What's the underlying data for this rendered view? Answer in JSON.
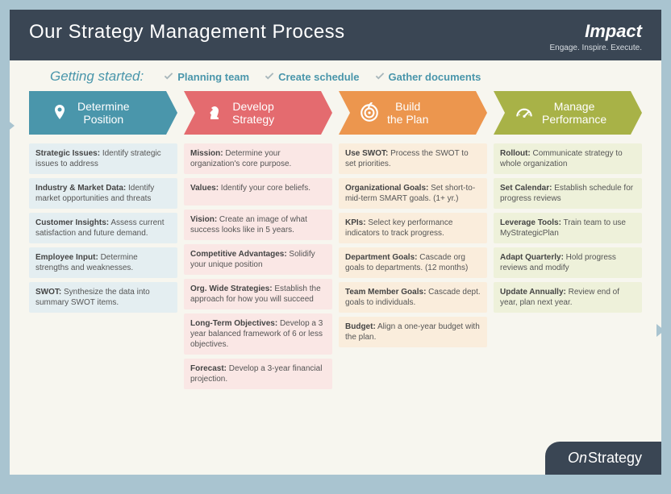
{
  "header": {
    "title": "Our Strategy Management Process",
    "brand": "Impact",
    "tagline": "Engage. Inspire. Execute."
  },
  "getting_started": {
    "label": "Getting started:",
    "items": [
      "Planning team",
      "Create schedule",
      "Gather documents"
    ],
    "label_color": "#4a96ab",
    "check_color": "#a8b7bb"
  },
  "columns": [
    {
      "title": "Determine\nPosition",
      "header_color": "#4a96ab",
      "item_bg": "#e4eef1",
      "icon": "pin",
      "items": [
        {
          "bold": "Strategic Issues:",
          "text": " Identify strategic issues to address"
        },
        {
          "bold": "Industry & Market Data:",
          "text": " Identify market opportunities and threats"
        },
        {
          "bold": "Customer Insights:",
          "text": " Assess current satisfaction and future demand."
        },
        {
          "bold": "Employee Input:",
          "text": " Determine strengths and weaknesses."
        },
        {
          "bold": "SWOT:",
          "text": " Synthesize the data into summary SWOT items."
        }
      ]
    },
    {
      "title": "Develop\nStrategy",
      "header_color": "#e46b6f",
      "item_bg": "#fae7e5",
      "icon": "knight",
      "items": [
        {
          "bold": "Mission:",
          "text": " Determine your organization's core purpose."
        },
        {
          "bold": "Values:",
          "text": " Identify your core beliefs."
        },
        {
          "bold": "Vision:",
          "text": " Create an image of what success looks like in 5 years."
        },
        {
          "bold": "Competitive Advantages:",
          "text": " Solidify your unique position"
        },
        {
          "bold": "Org. Wide Strategies:",
          "text": " Establish the approach for how you will succeed"
        },
        {
          "bold": "Long-Term Objectives:",
          "text": " Develop a 3 year balanced framework of 6 or less objectives."
        },
        {
          "bold": "Forecast:",
          "text": " Develop a 3-year financial projection."
        }
      ]
    },
    {
      "title": "Build\nthe Plan",
      "header_color": "#ec964e",
      "item_bg": "#faeddc",
      "icon": "target",
      "items": [
        {
          "bold": "Use SWOT:",
          "text": " Process the SWOT to set priorities."
        },
        {
          "bold": "Organizational Goals:",
          "text": " Set short-to-mid-term SMART goals. (1+ yr.)"
        },
        {
          "bold": "KPIs:",
          "text": " Select key performance indicators to track progress."
        },
        {
          "bold": "Department Goals:",
          "text": " Cascade org goals to departments. (12 months)"
        },
        {
          "bold": "Team Member Goals:",
          "text": " Cascade dept. goals to individuals."
        },
        {
          "bold": "Budget:",
          "text": " Align a one-year budget with the plan."
        }
      ]
    },
    {
      "title": "Manage\nPerformance",
      "header_color": "#a8b247",
      "item_bg": "#eef1da",
      "icon": "gauge",
      "items": [
        {
          "bold": "Rollout:",
          "text": " Communicate strategy to whole organization"
        },
        {
          "bold": "Set Calendar:",
          "text": " Establish schedule for progress reviews"
        },
        {
          "bold": "Leverage Tools:",
          "text": " Train team to use MyStrategicPlan"
        },
        {
          "bold": "Adapt Quarterly:",
          "text": " Hold progress reviews and modify"
        },
        {
          "bold": "Update Annually:",
          "text": " Review end of year, plan next year."
        }
      ]
    }
  ],
  "footer": {
    "on": "On",
    "strategy": "Strategy"
  },
  "colors": {
    "page_bg": "#a9c4d0",
    "panel_bg": "#f7f6ef",
    "header_bg": "#3a4654"
  }
}
